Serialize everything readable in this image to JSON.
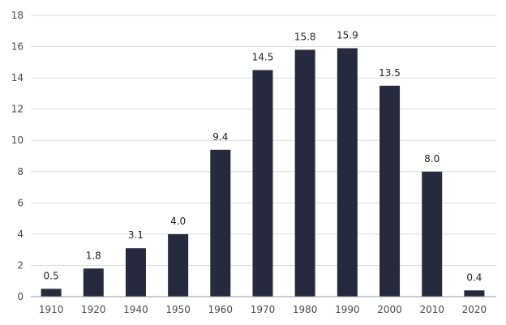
{
  "chart_data": {
    "type": "bar",
    "categories": [
      "1910",
      "1920",
      "1940",
      "1950",
      "1960",
      "1970",
      "1980",
      "1990",
      "2000",
      "2010",
      "2020"
    ],
    "values": [
      0.5,
      1.8,
      3.1,
      4.0,
      9.4,
      14.5,
      15.8,
      15.9,
      13.5,
      8.0,
      0.4
    ],
    "data_labels": [
      "0.5",
      "1.8",
      "3.1",
      "4.0",
      "9.4",
      "14.5",
      "15.8",
      "15.9",
      "13.5",
      "8.0",
      "0.4"
    ],
    "y_ticks": [
      0,
      2,
      4,
      6,
      8,
      10,
      12,
      14,
      16,
      18
    ],
    "ylim": [
      0,
      18
    ],
    "grid": true,
    "legend": "none",
    "bar_color": "#272a3d",
    "grid_color": "#dcdcdc"
  }
}
